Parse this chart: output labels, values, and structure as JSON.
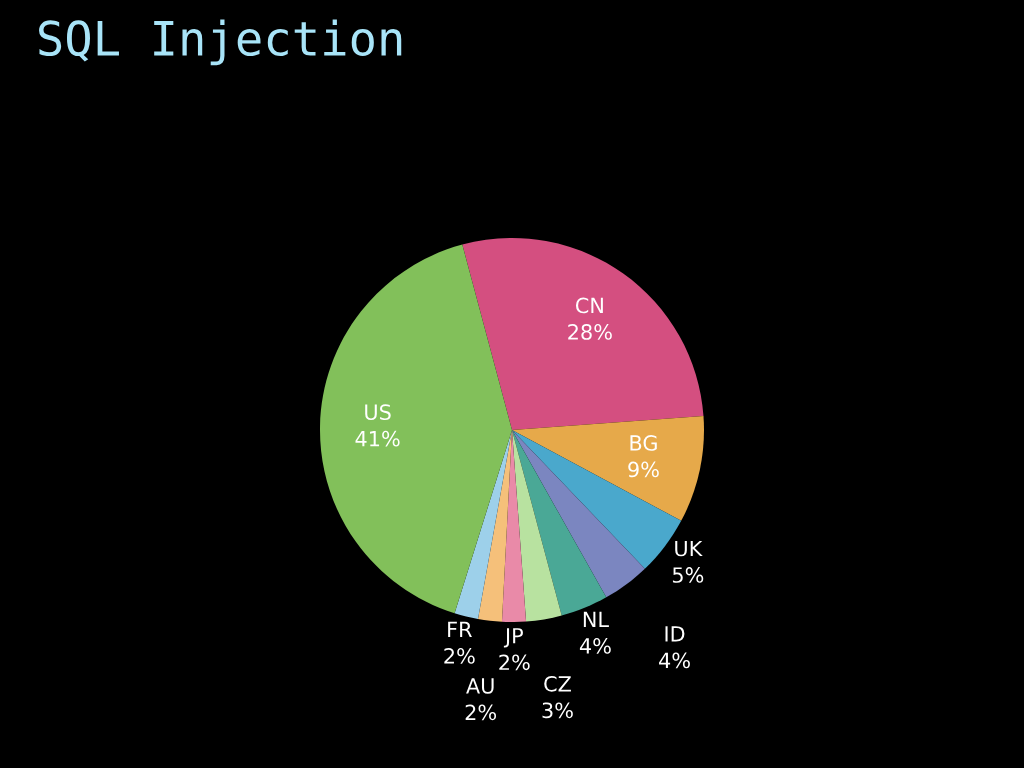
{
  "chart_data": {
    "type": "pie",
    "title": "SQL Injection",
    "categories": [
      "CN",
      "BG",
      "UK",
      "ID",
      "NL",
      "CZ",
      "JP",
      "AU",
      "FR",
      "US"
    ],
    "values": [
      28,
      9,
      5,
      4,
      4,
      3,
      2,
      2,
      2,
      41
    ],
    "value_labels": [
      "28%",
      "9%",
      "5%",
      "4%",
      "4%",
      "3%",
      "2%",
      "2%",
      "2%",
      "41%"
    ],
    "colors": [
      "#d44f80",
      "#e6a94a",
      "#4aa8cc",
      "#7b86c0",
      "#4aa896",
      "#b8e2a0",
      "#e98aa8",
      "#f5c07a",
      "#9dd0ea",
      "#82c05a"
    ]
  }
}
